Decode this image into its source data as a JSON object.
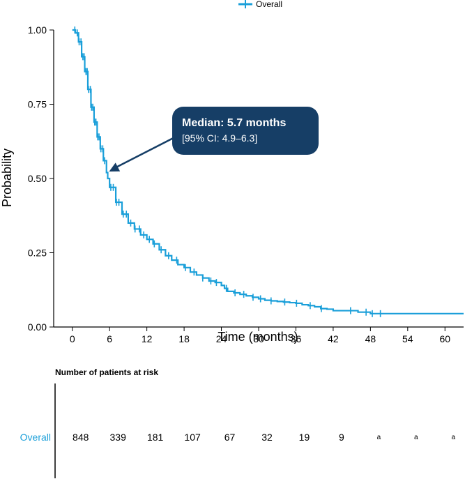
{
  "chart_data": {
    "type": "line",
    "subtype": "kaplan-meier",
    "xlabel": "Time (months)",
    "ylabel": "Probability",
    "xlim": [
      -3,
      63
    ],
    "ylim": [
      0,
      1
    ],
    "xticks": [
      0,
      6,
      12,
      18,
      24,
      30,
      36,
      42,
      48,
      54,
      60
    ],
    "yticks": [
      "0.00",
      "0.25",
      "0.50",
      "0.75",
      "1.00"
    ],
    "grid": false,
    "legend": {
      "placement": "top-center",
      "entries": [
        "Overall"
      ]
    },
    "series": [
      {
        "name": "Overall",
        "color": "#1a9fd9",
        "x": [
          0,
          0.5,
          1,
          1.5,
          2,
          2.5,
          3,
          3.5,
          4,
          4.5,
          5,
          5.5,
          5.7,
          6,
          7,
          8,
          9,
          10,
          11,
          12,
          13,
          14,
          15,
          16,
          17,
          18,
          19,
          20,
          21,
          22,
          23,
          24,
          24.5,
          25,
          26,
          27,
          28,
          29,
          30,
          31,
          32,
          33,
          34,
          35,
          36,
          37,
          38,
          39,
          40,
          41,
          42,
          44,
          46,
          48,
          50,
          52,
          56,
          60,
          63
        ],
        "y": [
          1.0,
          0.99,
          0.96,
          0.91,
          0.86,
          0.8,
          0.74,
          0.69,
          0.64,
          0.6,
          0.56,
          0.52,
          0.5,
          0.47,
          0.42,
          0.38,
          0.35,
          0.33,
          0.31,
          0.295,
          0.28,
          0.26,
          0.24,
          0.225,
          0.21,
          0.2,
          0.185,
          0.175,
          0.165,
          0.155,
          0.15,
          0.14,
          0.13,
          0.12,
          0.115,
          0.11,
          0.105,
          0.1,
          0.095,
          0.09,
          0.088,
          0.086,
          0.084,
          0.082,
          0.08,
          0.075,
          0.072,
          0.068,
          0.062,
          0.06,
          0.055,
          0.055,
          0.05,
          0.045,
          0.045,
          0.045,
          0.045,
          0.045,
          0.045
        ]
      }
    ],
    "censor_marks_x": [
      0.4,
      0.8,
      1.1,
      1.4,
      1.7,
      1.9,
      2.2,
      2.4,
      2.6,
      2.9,
      3.1,
      3.3,
      3.6,
      3.8,
      4.1,
      4.3,
      4.6,
      4.9,
      5.2,
      6.2,
      6.6,
      7.1,
      7.5,
      8.2,
      8.7,
      9.4,
      10.1,
      10.8,
      11.5,
      12.4,
      13.2,
      14.3,
      15.5,
      16.8,
      18.2,
      19.6,
      21.0,
      22.3,
      23.2,
      24.8,
      26.2,
      27.6,
      29.1,
      30.3,
      32.0,
      34.2,
      36.1,
      38.3,
      40.1,
      44.8,
      47.3,
      48.3,
      49.6
    ],
    "annotation": {
      "title": "Median: 5.7 months",
      "subtitle": "[95% CI: 4.9–6.3]",
      "x": 5.7,
      "y": 0.5,
      "fill": "#163e66"
    },
    "risk_table": {
      "title": "Number of patients at risk",
      "series_name": "Overall",
      "times": [
        0,
        6,
        12,
        18,
        24,
        30,
        36,
        42,
        48,
        54,
        60
      ],
      "values": [
        "848",
        "339",
        "181",
        "107",
        "67",
        "32",
        "19",
        "9",
        "a",
        "a",
        "a"
      ]
    }
  }
}
